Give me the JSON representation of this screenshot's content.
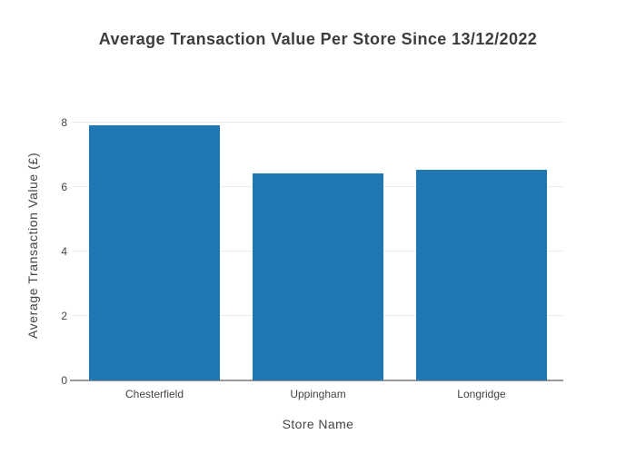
{
  "chart_data": {
    "type": "bar",
    "title": "Average Transaction Value Per Store Since 13/12/2022",
    "categories": [
      "Chesterfield",
      "Uppingham",
      "Longridge"
    ],
    "values": [
      7.92,
      6.43,
      6.55
    ],
    "xlabel": "Store Name",
    "ylabel": "Average Transaction Value (£)",
    "ylim": [
      0,
      8.4
    ],
    "yticks": [
      0,
      2,
      4,
      6,
      8
    ],
    "grid": true,
    "legend": "none",
    "style": {
      "bar_color": "#2077b4",
      "grid_color": "#ebebeb",
      "axis_line_color": "#9a9a9a",
      "title_color": "#3d3d3d",
      "text_color": "#444444",
      "background": "#ffffff"
    }
  }
}
